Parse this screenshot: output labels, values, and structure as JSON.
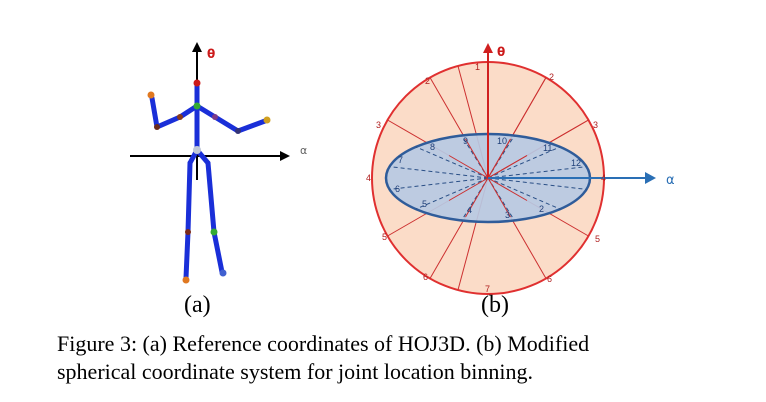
{
  "figure": {
    "panel_a": {
      "label": "(a)",
      "axis_vertical": "θ",
      "axis_horizontal": "α"
    },
    "panel_b": {
      "label": "(b)",
      "axis_vertical": "θ",
      "axis_horizontal": "α",
      "outer_sector_numbers": [
        "1",
        "2",
        "2",
        "3",
        "3",
        "4",
        "4",
        "5",
        "5",
        "6",
        "6",
        "7"
      ],
      "inner_bin_numbers": [
        "2",
        "3",
        "4",
        "5",
        "6",
        "7",
        "8",
        "9",
        "10",
        "11",
        "12"
      ]
    },
    "caption_line1": "Figure 3: (a) Reference coordinates of HOJ3D. (b) Modified",
    "caption_line2": "spherical coordinate system for joint location binning.",
    "colors": {
      "axis_red": "#cc1a1a",
      "axis_blue": "#2a6fb5",
      "skeleton_blue": "#1a2fd8",
      "sphere_fill": "#fbdcc8",
      "ellipse_fill": "#b7c9e3",
      "ellipse_stroke": "#2f5c9a"
    }
  }
}
